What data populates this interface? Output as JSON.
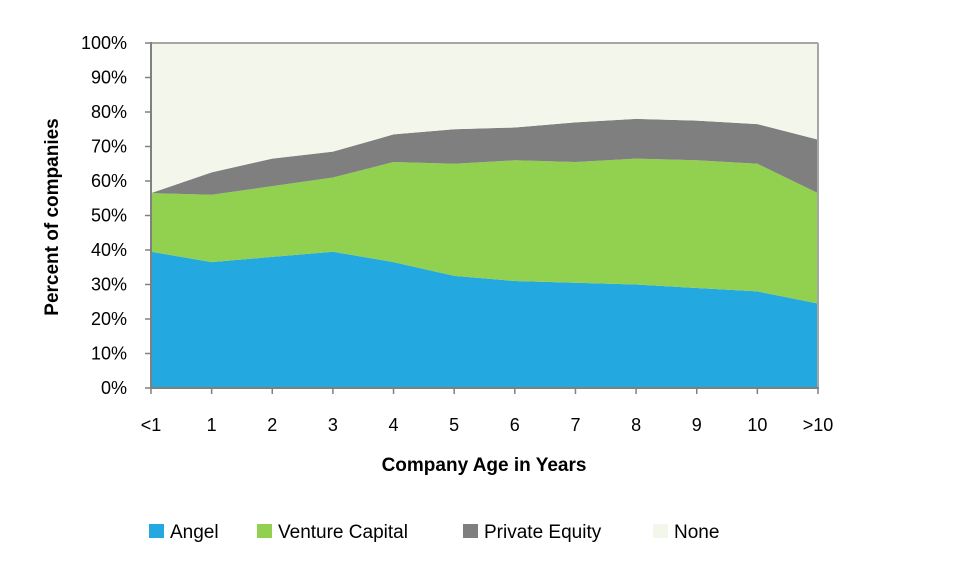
{
  "chart_data": {
    "type": "area",
    "stacked": true,
    "categories": [
      "<1",
      "1",
      "2",
      "3",
      "4",
      "5",
      "6",
      "7",
      "8",
      "9",
      "10",
      ">10"
    ],
    "xlabel": "Company Age in Years",
    "ylabel": "Percent of companies",
    "ylim": [
      0,
      100
    ],
    "yticks": [
      "0%",
      "10%",
      "20%",
      "30%",
      "40%",
      "50%",
      "60%",
      "70%",
      "80%",
      "90%",
      "100%"
    ],
    "grid": false,
    "legend": "bottom",
    "series": [
      {
        "name": "Angel",
        "color": "#24a8e0",
        "values": [
          39.5,
          36.5,
          38,
          39.5,
          36.5,
          32.5,
          31,
          30.5,
          30,
          29,
          28,
          24.5
        ]
      },
      {
        "name": "Venture Capital",
        "color": "#92d050",
        "values": [
          17,
          19.5,
          20.5,
          21.5,
          29,
          32.5,
          35,
          35,
          36.5,
          37,
          37,
          32
        ]
      },
      {
        "name": "Private Equity",
        "color": "#7f7f7f",
        "values": [
          0,
          6.5,
          8,
          7.5,
          8,
          10,
          9.5,
          11.5,
          11.5,
          11.5,
          11.5,
          15.5
        ]
      },
      {
        "name": "None",
        "color": "#f3f6ea",
        "values": [
          43.5,
          37.5,
          33.5,
          31.5,
          26.5,
          25,
          24.5,
          23,
          22,
          22.5,
          23.5,
          28
        ]
      }
    ]
  }
}
